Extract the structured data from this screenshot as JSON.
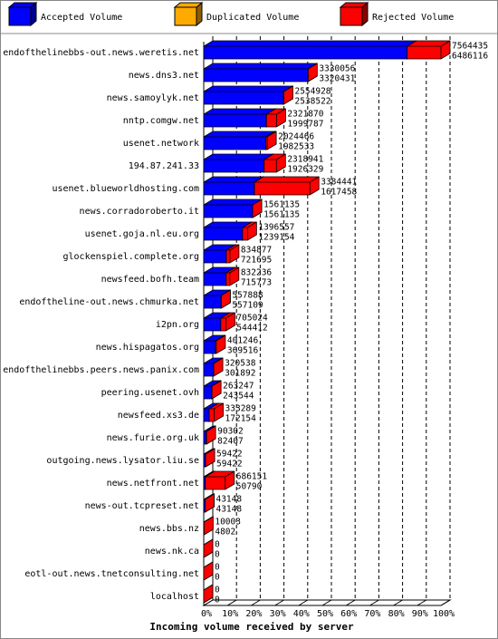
{
  "chart_data": {
    "type": "bar3d",
    "orientation": "horizontal",
    "stacked": true,
    "x_label": "Incoming volume received by server",
    "categories": [
      "endofthelinebbs-out.news.weretis.net",
      "news.dns3.net",
      "news.samoylyk.net",
      "nntp.comgw.net",
      "usenet.network",
      "194.87.241.33",
      "usenet.blueworldhosting.com",
      "news.corradoroberto.it",
      "usenet.goja.nl.eu.org",
      "glockenspiel.complete.org",
      "newsfeed.bofh.team",
      "endoftheline-out.news.chmurka.net",
      "i2pn.org",
      "news.hispagatos.org",
      "endofthelinebbs.peers.news.panix.com",
      "peering.usenet.ovh",
      "newsfeed.xs3.de",
      "news.furie.org.uk",
      "outgoing.news.lysator.liu.se",
      "news.netfront.net",
      "news-out.tcpreset.net",
      "news.bbs.nz",
      "news.nk.ca",
      "eotl-out.news.tnetconsulting.net",
      "localhost"
    ],
    "series": [
      {
        "name": "Accepted Volume",
        "color": "#0000ff",
        "values": [
          6486116,
          3320431,
          2538522,
          1999787,
          1982533,
          1926329,
          1617458,
          1561135,
          1239154,
          721695,
          715773,
          557109,
          544412,
          369516,
          301892,
          243544,
          172154,
          82407,
          59422,
          50790,
          43148,
          4802,
          0,
          0,
          0
        ]
      },
      {
        "name": "Duplicated Volume",
        "color": "#ffaa00",
        "values": [
          0,
          0,
          0,
          0,
          0,
          0,
          0,
          0,
          0,
          0,
          0,
          0,
          0,
          0,
          0,
          0,
          0,
          0,
          0,
          0,
          0,
          0,
          0,
          0,
          0
        ]
      },
      {
        "name": "Rejected Volume",
        "color": "#ff0000",
        "values": [
          1078319,
          9625,
          16406,
          322083,
          41933,
          392612,
          1766983,
          0,
          157403,
          113182,
          116463,
          779,
          160612,
          31730,
          18646,
          19703,
          161135,
          7895,
          0,
          635361,
          0,
          5201,
          0,
          0,
          0
        ]
      }
    ],
    "totals": [
      7564435,
      3330056,
      2554928,
      2321870,
      2024466,
      2318941,
      3384441,
      1561135,
      1396557,
      834877,
      832236,
      557888,
      705024,
      401246,
      320538,
      263247,
      333289,
      90302,
      59422,
      686151,
      43148,
      10003,
      0,
      0,
      0
    ],
    "xlim": [
      0,
      7564435
    ],
    "xticks": [
      {
        "value": 0,
        "label": "0%"
      },
      {
        "value": 756443.5,
        "label": "10%"
      },
      {
        "value": 1512887,
        "label": "20%"
      },
      {
        "value": 2269330.5,
        "label": "30%"
      },
      {
        "value": 3025774,
        "label": "40%"
      },
      {
        "value": 3782217.5,
        "label": "50%"
      },
      {
        "value": 4538661,
        "label": "60%"
      },
      {
        "value": 5295104.5,
        "label": "70%"
      },
      {
        "value": 6051548,
        "label": "80%"
      },
      {
        "value": 6807991.5,
        "label": "90%"
      },
      {
        "value": 7564435,
        "label": "100%"
      }
    ],
    "grid": true
  }
}
